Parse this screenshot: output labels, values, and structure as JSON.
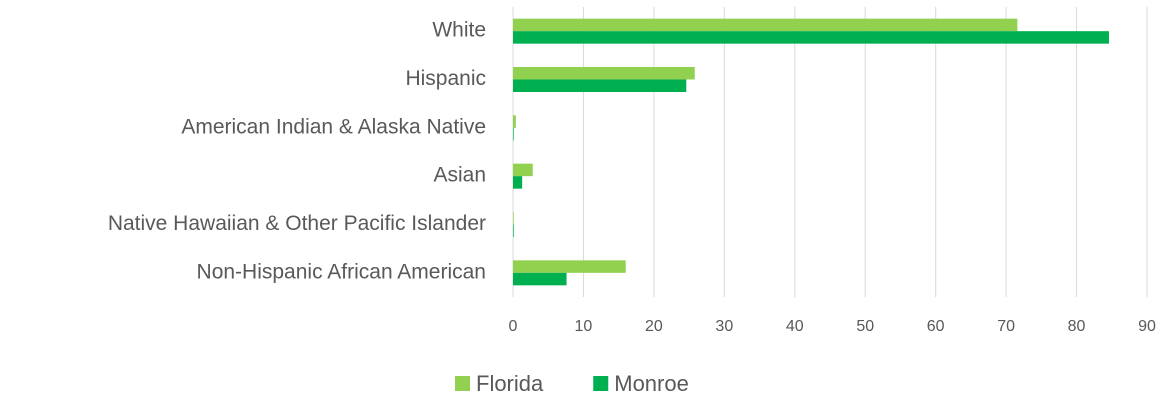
{
  "chart_data": {
    "type": "bar",
    "orientation": "horizontal",
    "categories": [
      "White",
      "Hispanic",
      "American Indian & Alaska Native",
      "Asian",
      "Native Hawaiian & Other Pacific Islander",
      "Non-Hispanic African American"
    ],
    "series": [
      {
        "name": "Florida",
        "color": "#92d050",
        "values": [
          71.6,
          25.8,
          0.4,
          2.8,
          0.1,
          16.0
        ]
      },
      {
        "name": "Monroe",
        "color": "#00b050",
        "values": [
          84.6,
          24.6,
          0.1,
          1.3,
          0.1,
          7.6
        ]
      }
    ],
    "xlim": [
      0,
      90
    ],
    "xticks": [
      0,
      10,
      20,
      30,
      40,
      50,
      60,
      70,
      80,
      90
    ],
    "grid": true,
    "legend": "bottom"
  }
}
